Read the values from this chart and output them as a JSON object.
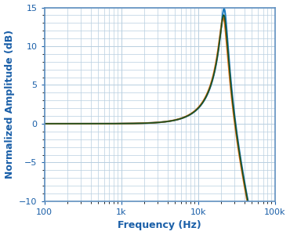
{
  "title": "",
  "xlabel": "Frequency (Hz)",
  "ylabel": "Normalized Amplitude (dB)",
  "xlim": [
    100,
    100000
  ],
  "ylim": [
    -10,
    15
  ],
  "yticks": [
    -10,
    -5,
    0,
    5,
    10,
    15
  ],
  "xtick_labels": [
    "100",
    "1k",
    "10k",
    "100k"
  ],
  "xtick_values": [
    100,
    1000,
    10000,
    100000
  ],
  "background_color": "#ffffff",
  "grid_color": "#b8cfe0",
  "curves": [
    {
      "f0": 22000,
      "Q": 5.5,
      "color": "#1a7abf",
      "lw": 1.5
    },
    {
      "f0": 21500,
      "Q": 4.8,
      "color": "#e8751a",
      "lw": 1.5
    },
    {
      "f0": 21800,
      "Q": 5.0,
      "color": "#1a5020",
      "lw": 1.2
    }
  ],
  "xlabel_color": "#1a5fa8",
  "ylabel_color": "#1a5fa8",
  "tick_color": "#1a5fa8",
  "label_fontsize": 9,
  "tick_fontsize": 8,
  "spine_color": "#6090c0",
  "spine_lw": 1.2
}
